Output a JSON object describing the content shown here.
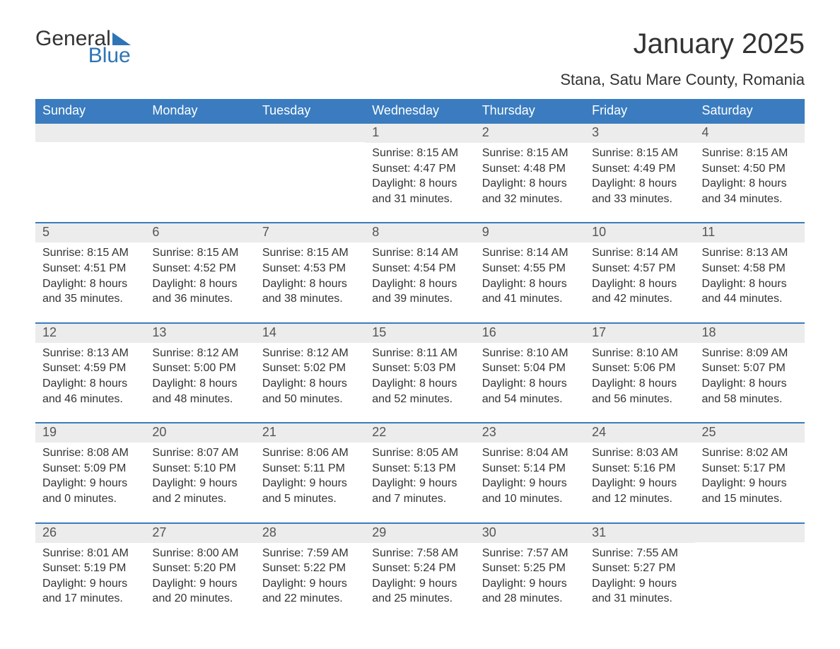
{
  "logo": {
    "text_general": "General",
    "text_blue": "Blue"
  },
  "title": "January 2025",
  "subtitle": "Stana, Satu Mare County, Romania",
  "colors": {
    "header_bg": "#3a7cbf",
    "header_text": "#ffffff",
    "strip_bg": "#ececec",
    "body_text": "#333333",
    "logo_blue": "#2e75b6",
    "page_bg": "#ffffff"
  },
  "weekdays": [
    "Sunday",
    "Monday",
    "Tuesday",
    "Wednesday",
    "Thursday",
    "Friday",
    "Saturday"
  ],
  "weeks": [
    [
      {
        "day": "",
        "sunrise": "",
        "sunset": "",
        "daylight": ""
      },
      {
        "day": "",
        "sunrise": "",
        "sunset": "",
        "daylight": ""
      },
      {
        "day": "",
        "sunrise": "",
        "sunset": "",
        "daylight": ""
      },
      {
        "day": "1",
        "sunrise": "Sunrise: 8:15 AM",
        "sunset": "Sunset: 4:47 PM",
        "daylight": "Daylight: 8 hours and 31 minutes."
      },
      {
        "day": "2",
        "sunrise": "Sunrise: 8:15 AM",
        "sunset": "Sunset: 4:48 PM",
        "daylight": "Daylight: 8 hours and 32 minutes."
      },
      {
        "day": "3",
        "sunrise": "Sunrise: 8:15 AM",
        "sunset": "Sunset: 4:49 PM",
        "daylight": "Daylight: 8 hours and 33 minutes."
      },
      {
        "day": "4",
        "sunrise": "Sunrise: 8:15 AM",
        "sunset": "Sunset: 4:50 PM",
        "daylight": "Daylight: 8 hours and 34 minutes."
      }
    ],
    [
      {
        "day": "5",
        "sunrise": "Sunrise: 8:15 AM",
        "sunset": "Sunset: 4:51 PM",
        "daylight": "Daylight: 8 hours and 35 minutes."
      },
      {
        "day": "6",
        "sunrise": "Sunrise: 8:15 AM",
        "sunset": "Sunset: 4:52 PM",
        "daylight": "Daylight: 8 hours and 36 minutes."
      },
      {
        "day": "7",
        "sunrise": "Sunrise: 8:15 AM",
        "sunset": "Sunset: 4:53 PM",
        "daylight": "Daylight: 8 hours and 38 minutes."
      },
      {
        "day": "8",
        "sunrise": "Sunrise: 8:14 AM",
        "sunset": "Sunset: 4:54 PM",
        "daylight": "Daylight: 8 hours and 39 minutes."
      },
      {
        "day": "9",
        "sunrise": "Sunrise: 8:14 AM",
        "sunset": "Sunset: 4:55 PM",
        "daylight": "Daylight: 8 hours and 41 minutes."
      },
      {
        "day": "10",
        "sunrise": "Sunrise: 8:14 AM",
        "sunset": "Sunset: 4:57 PM",
        "daylight": "Daylight: 8 hours and 42 minutes."
      },
      {
        "day": "11",
        "sunrise": "Sunrise: 8:13 AM",
        "sunset": "Sunset: 4:58 PM",
        "daylight": "Daylight: 8 hours and 44 minutes."
      }
    ],
    [
      {
        "day": "12",
        "sunrise": "Sunrise: 8:13 AM",
        "sunset": "Sunset: 4:59 PM",
        "daylight": "Daylight: 8 hours and 46 minutes."
      },
      {
        "day": "13",
        "sunrise": "Sunrise: 8:12 AM",
        "sunset": "Sunset: 5:00 PM",
        "daylight": "Daylight: 8 hours and 48 minutes."
      },
      {
        "day": "14",
        "sunrise": "Sunrise: 8:12 AM",
        "sunset": "Sunset: 5:02 PM",
        "daylight": "Daylight: 8 hours and 50 minutes."
      },
      {
        "day": "15",
        "sunrise": "Sunrise: 8:11 AM",
        "sunset": "Sunset: 5:03 PM",
        "daylight": "Daylight: 8 hours and 52 minutes."
      },
      {
        "day": "16",
        "sunrise": "Sunrise: 8:10 AM",
        "sunset": "Sunset: 5:04 PM",
        "daylight": "Daylight: 8 hours and 54 minutes."
      },
      {
        "day": "17",
        "sunrise": "Sunrise: 8:10 AM",
        "sunset": "Sunset: 5:06 PM",
        "daylight": "Daylight: 8 hours and 56 minutes."
      },
      {
        "day": "18",
        "sunrise": "Sunrise: 8:09 AM",
        "sunset": "Sunset: 5:07 PM",
        "daylight": "Daylight: 8 hours and 58 minutes."
      }
    ],
    [
      {
        "day": "19",
        "sunrise": "Sunrise: 8:08 AM",
        "sunset": "Sunset: 5:09 PM",
        "daylight": "Daylight: 9 hours and 0 minutes."
      },
      {
        "day": "20",
        "sunrise": "Sunrise: 8:07 AM",
        "sunset": "Sunset: 5:10 PM",
        "daylight": "Daylight: 9 hours and 2 minutes."
      },
      {
        "day": "21",
        "sunrise": "Sunrise: 8:06 AM",
        "sunset": "Sunset: 5:11 PM",
        "daylight": "Daylight: 9 hours and 5 minutes."
      },
      {
        "day": "22",
        "sunrise": "Sunrise: 8:05 AM",
        "sunset": "Sunset: 5:13 PM",
        "daylight": "Daylight: 9 hours and 7 minutes."
      },
      {
        "day": "23",
        "sunrise": "Sunrise: 8:04 AM",
        "sunset": "Sunset: 5:14 PM",
        "daylight": "Daylight: 9 hours and 10 minutes."
      },
      {
        "day": "24",
        "sunrise": "Sunrise: 8:03 AM",
        "sunset": "Sunset: 5:16 PM",
        "daylight": "Daylight: 9 hours and 12 minutes."
      },
      {
        "day": "25",
        "sunrise": "Sunrise: 8:02 AM",
        "sunset": "Sunset: 5:17 PM",
        "daylight": "Daylight: 9 hours and 15 minutes."
      }
    ],
    [
      {
        "day": "26",
        "sunrise": "Sunrise: 8:01 AM",
        "sunset": "Sunset: 5:19 PM",
        "daylight": "Daylight: 9 hours and 17 minutes."
      },
      {
        "day": "27",
        "sunrise": "Sunrise: 8:00 AM",
        "sunset": "Sunset: 5:20 PM",
        "daylight": "Daylight: 9 hours and 20 minutes."
      },
      {
        "day": "28",
        "sunrise": "Sunrise: 7:59 AM",
        "sunset": "Sunset: 5:22 PM",
        "daylight": "Daylight: 9 hours and 22 minutes."
      },
      {
        "day": "29",
        "sunrise": "Sunrise: 7:58 AM",
        "sunset": "Sunset: 5:24 PM",
        "daylight": "Daylight: 9 hours and 25 minutes."
      },
      {
        "day": "30",
        "sunrise": "Sunrise: 7:57 AM",
        "sunset": "Sunset: 5:25 PM",
        "daylight": "Daylight: 9 hours and 28 minutes."
      },
      {
        "day": "31",
        "sunrise": "Sunrise: 7:55 AM",
        "sunset": "Sunset: 5:27 PM",
        "daylight": "Daylight: 9 hours and 31 minutes."
      },
      {
        "day": "",
        "sunrise": "",
        "sunset": "",
        "daylight": ""
      }
    ]
  ]
}
